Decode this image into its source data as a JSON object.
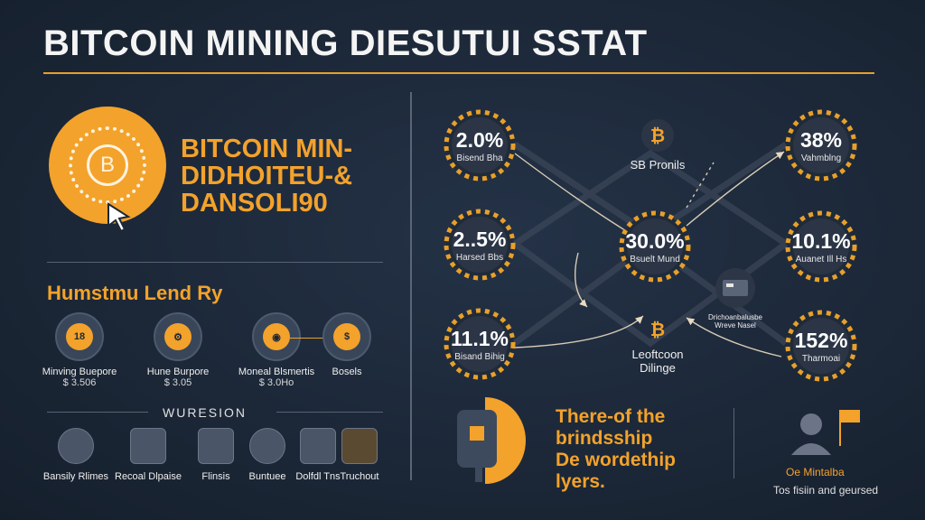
{
  "title": "BITCOIN MINING DIESUTUI  SSTAT",
  "side_title": [
    "BITCOIN MIN-",
    "DIDHOITEU-&",
    "DANSOLI90"
  ],
  "coin_symbol": "B",
  "subhead": "Humstmu Lend Ry",
  "features": [
    {
      "label": "Minving Buepore",
      "value": "$ 3.506",
      "icon_text": "18",
      "icon": "coin-icon"
    },
    {
      "label": "Hune Burpore",
      "value": "$ 3.05",
      "icon_text": "⚙",
      "icon": "circuit-icon"
    },
    {
      "label": "Moneal Blsmertis",
      "value": "$ 3.0Ho",
      "icon_text": "◉",
      "icon": "token-icon"
    },
    {
      "label": "Bosels",
      "value": "",
      "icon_text": "$",
      "icon": "money-bag-icon"
    }
  ],
  "section_label": "WURESION",
  "tools": [
    {
      "label": "Bansily Rlimes",
      "icon": "person-icon"
    },
    {
      "label": "Recoal Dlpaise",
      "icon": "mining-rig-icon"
    },
    {
      "label": "Flinsis",
      "icon": "calculator-icon"
    },
    {
      "label": "Buntuee",
      "icon": "hand-coin-icon"
    },
    {
      "label": "Dolfdl Tns",
      "icon": "calculator-icon"
    },
    {
      "label": "Truchout",
      "icon": "wallet-icon"
    }
  ],
  "nodes": [
    {
      "pct": "2.0%",
      "caption": "Bisend Bha"
    },
    {
      "pct": "2..5%",
      "caption": "Harsed Bbs"
    },
    {
      "pct": "11.1%",
      "caption": "Bisand Bihig"
    },
    {
      "pct": "30.0%",
      "caption": "Bsuelt Mund"
    },
    {
      "pct": "38%",
      "caption": "Vahmblng"
    },
    {
      "pct": "10.1%",
      "caption": "Auanet Ill Hs"
    },
    {
      "pct": "152%",
      "caption": "Tharmoai"
    }
  ],
  "minis": {
    "top": "SB Pronils",
    "bottom_a": "Leoftcoon",
    "bottom_b": "Dilinge",
    "server_caption_a": "Drichoanbalusbe",
    "server_caption_b": "Wreve Nasel"
  },
  "promo": [
    "There-of the",
    "brindsship",
    "De wordethip",
    "lyers."
  ],
  "note": {
    "title": "Oe Mintalba",
    "text": "Tos fisiin and geursed"
  },
  "colors": {
    "accent": "#f3a22b",
    "background": "#1c2838",
    "text": "#f0f0f0"
  }
}
